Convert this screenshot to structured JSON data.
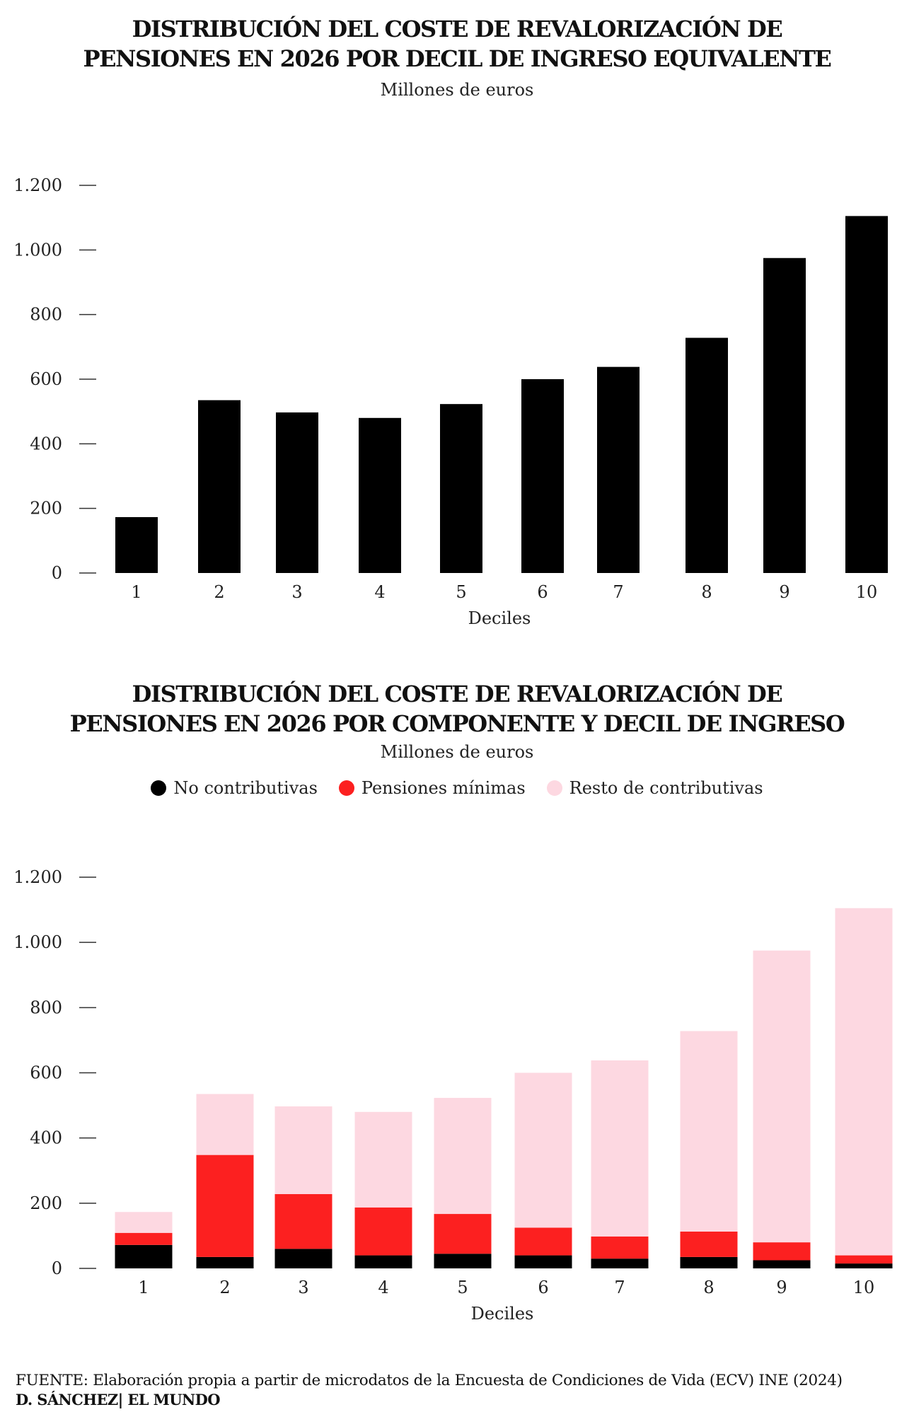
{
  "chart1": {
    "title_line1": "DISTRIBUCIÓN DEL COSTE DE REVALORIZACIÓN DE",
    "title_line2": "PENSIONES EN 2026 POR DECIL DE INGRESO EQUIVALENTE",
    "subtitle": "Millones de euros"
  },
  "chart2": {
    "title_line1": "DISTRIBUCIÓN DEL COSTE DE REVALORIZACIÓN DE",
    "title_line2": "PENSIONES EN 2026 POR COMPONENTE Y DECIL DE INGRESO",
    "subtitle": "Millones de euros",
    "legend": [
      {
        "label": "No contributivas",
        "color": "#000000"
      },
      {
        "label": "Pensiones mínimas",
        "color": "#fc2020"
      },
      {
        "label": "Resto de contributivas",
        "color": "#fdd8e1"
      }
    ]
  },
  "footer": {
    "source": "FUENTE: Elaboración propia a partir de microdatos de la Encuesta de Condiciones de Vida (ECV) INE (2024)",
    "credit": "D. SÁNCHEZ| EL MUNDO"
  },
  "chart_data": [
    {
      "type": "bar",
      "title": "DISTRIBUCIÓN DEL COSTE DE REVALORIZACIÓN DE PENSIONES EN 2026 POR DECIL DE INGRESO EQUIVALENTE",
      "subtitle": "Millones de euros",
      "xlabel": "Deciles",
      "ylabel": "",
      "categories": [
        "1",
        "2",
        "3",
        "4",
        "5",
        "6",
        "7",
        "8",
        "9",
        "10"
      ],
      "values": [
        173,
        535,
        497,
        480,
        523,
        600,
        638,
        728,
        975,
        1105
      ],
      "ylim": [
        0,
        1200
      ],
      "yticks": [
        0,
        200,
        400,
        600,
        800,
        1000,
        1200
      ],
      "ytick_labels": [
        "0",
        "200",
        "400",
        "600",
        "800",
        "1.000",
        "1.200"
      ],
      "grid": false,
      "color": "#000000"
    },
    {
      "type": "bar",
      "stacked": true,
      "title": "DISTRIBUCIÓN DEL COSTE DE REVALORIZACIÓN DE PENSIONES EN 2026 POR COMPONENTE Y DECIL DE INGRESO",
      "subtitle": "Millones de euros",
      "xlabel": "Deciles",
      "ylabel": "",
      "categories": [
        "1",
        "2",
        "3",
        "4",
        "5",
        "6",
        "7",
        "8",
        "9",
        "10"
      ],
      "series": [
        {
          "name": "No contributivas",
          "color": "#000000",
          "values": [
            72,
            35,
            60,
            40,
            45,
            40,
            30,
            35,
            25,
            15
          ]
        },
        {
          "name": "Pensiones mínimas",
          "color": "#fc2020",
          "values": [
            37,
            313,
            168,
            147,
            122,
            85,
            68,
            78,
            55,
            25
          ]
        },
        {
          "name": "Resto de contributivas",
          "color": "#fdd8e1",
          "values": [
            64,
            187,
            269,
            293,
            356,
            475,
            540,
            615,
            895,
            1065
          ]
        }
      ],
      "ylim": [
        0,
        1200
      ],
      "yticks": [
        0,
        200,
        400,
        600,
        800,
        1000,
        1200
      ],
      "ytick_labels": [
        "0",
        "200",
        "400",
        "600",
        "800",
        "1.000",
        "1.200"
      ],
      "grid": false,
      "legend_position": "top-center"
    }
  ]
}
